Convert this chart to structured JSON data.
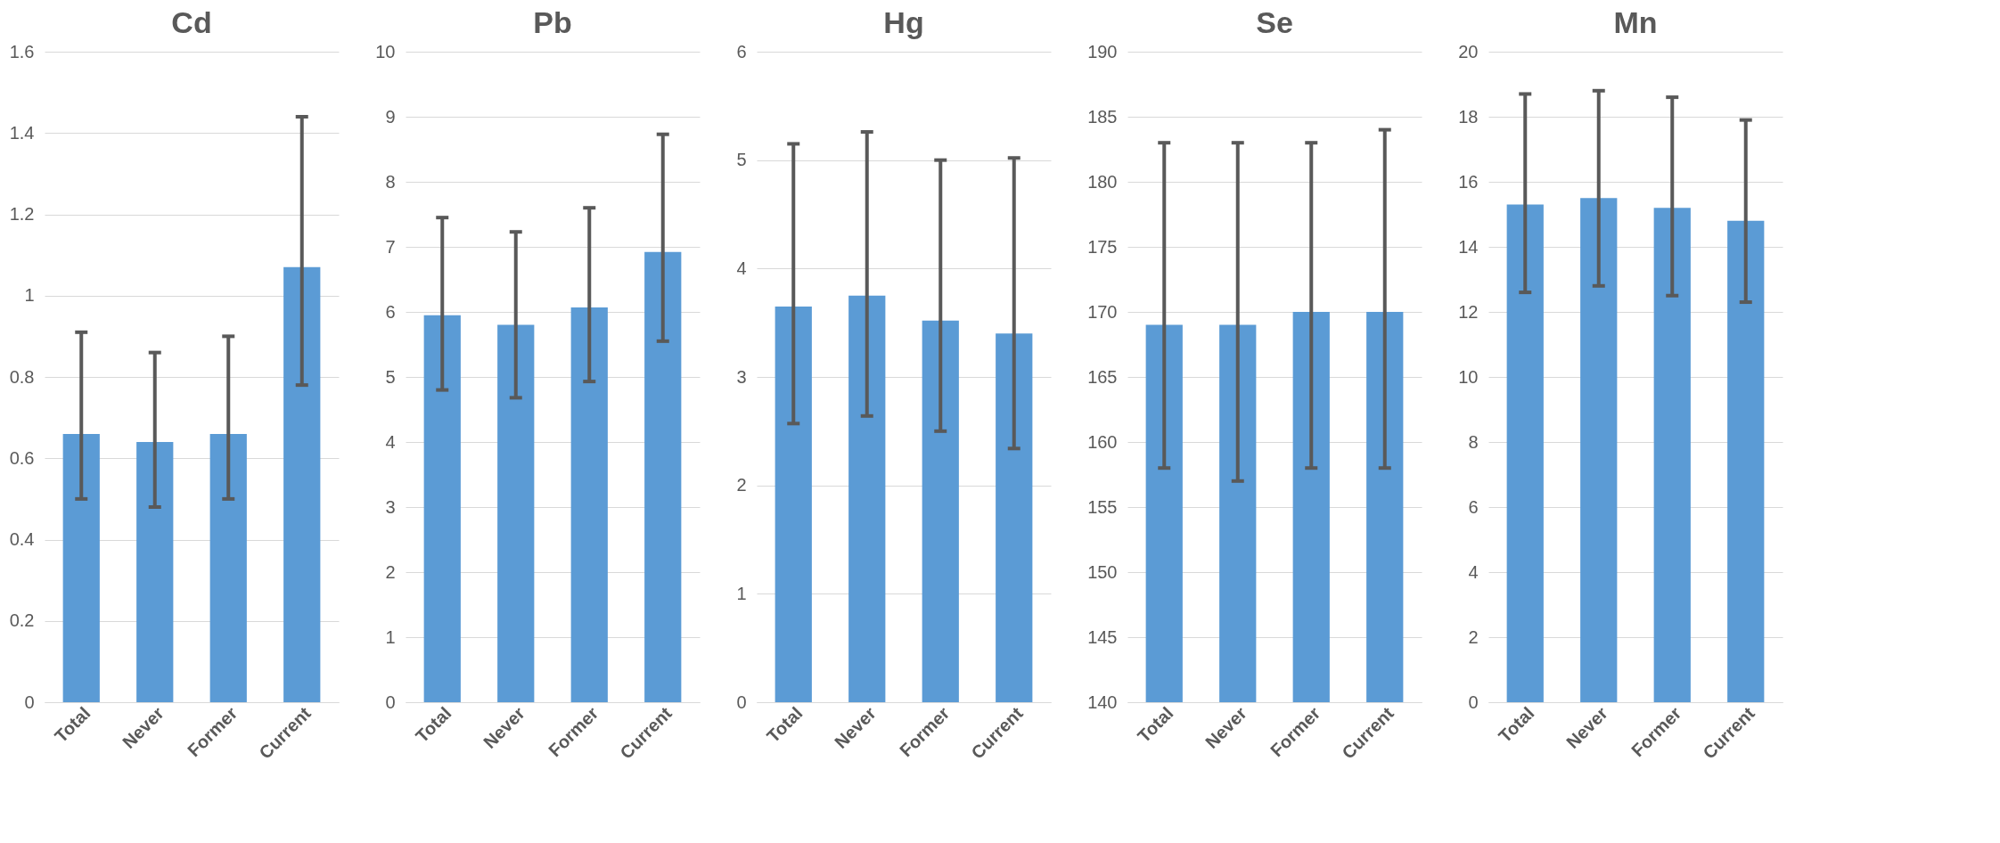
{
  "chart_data": [
    {
      "type": "bar",
      "title": "Cd",
      "categories": [
        "Total",
        "Never",
        "Former",
        "Current"
      ],
      "values": [
        0.66,
        0.64,
        0.66,
        1.07
      ],
      "errors": [
        [
          0.5,
          0.91
        ],
        [
          0.48,
          0.86
        ],
        [
          0.5,
          0.9
        ],
        [
          0.78,
          1.44
        ]
      ],
      "color": "#5b9bd5",
      "ylim": [
        0,
        1.6
      ],
      "yticks": [
        0,
        0.2,
        0.4,
        0.6,
        0.8,
        1,
        1.2,
        1.4,
        1.6
      ],
      "grid": "y"
    },
    {
      "type": "bar",
      "title": "Pb",
      "categories": [
        "Total",
        "Never",
        "Former",
        "Current"
      ],
      "values": [
        5.95,
        5.8,
        6.07,
        6.92
      ],
      "errors": [
        [
          4.8,
          7.45
        ],
        [
          4.68,
          7.23
        ],
        [
          4.93,
          7.6
        ],
        [
          5.55,
          8.73
        ]
      ],
      "color": "#5b9bd5",
      "ylim": [
        0,
        10
      ],
      "yticks": [
        0,
        1,
        2,
        3,
        4,
        5,
        6,
        7,
        8,
        9,
        10
      ],
      "grid": "y"
    },
    {
      "type": "bar",
      "title": "Hg",
      "categories": [
        "Total",
        "Never",
        "Former",
        "Current"
      ],
      "values": [
        3.65,
        3.75,
        3.52,
        3.4
      ],
      "errors": [
        [
          2.57,
          5.15
        ],
        [
          2.64,
          5.26
        ],
        [
          2.5,
          5.0
        ],
        [
          2.34,
          5.02
        ]
      ],
      "color": "#5b9bd5",
      "ylim": [
        0,
        6
      ],
      "yticks": [
        0,
        1,
        2,
        3,
        4,
        5,
        6
      ],
      "grid": "y"
    },
    {
      "type": "bar",
      "title": "Se",
      "categories": [
        "Total",
        "Never",
        "Former",
        "Current"
      ],
      "values": [
        169,
        169,
        170,
        170
      ],
      "errors": [
        [
          158,
          183
        ],
        [
          157,
          183
        ],
        [
          158,
          183
        ],
        [
          158,
          184
        ]
      ],
      "color": "#5b9bd5",
      "ylim": [
        140,
        190
      ],
      "yticks": [
        140,
        145,
        150,
        155,
        160,
        165,
        170,
        175,
        180,
        185,
        190
      ],
      "grid": "y"
    },
    {
      "type": "bar",
      "title": "Mn",
      "categories": [
        "Total",
        "Never",
        "Former",
        "Current"
      ],
      "values": [
        15.3,
        15.5,
        15.2,
        14.8
      ],
      "errors": [
        [
          12.6,
          18.7
        ],
        [
          12.8,
          18.8
        ],
        [
          12.5,
          18.6
        ],
        [
          12.3,
          17.9
        ]
      ],
      "color": "#5b9bd5",
      "ylim": [
        0,
        20
      ],
      "yticks": [
        0,
        2,
        4,
        6,
        8,
        10,
        12,
        14,
        16,
        18,
        20
      ],
      "grid": "y"
    }
  ]
}
